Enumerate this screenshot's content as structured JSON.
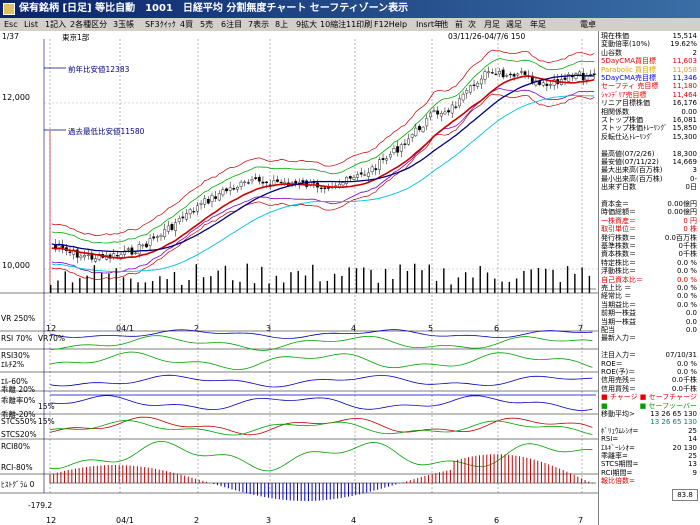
{
  "window": {
    "title": "保有銘柄 [日足] 等比自動　1001　日経平均 分割無度チャート セーフティゾーン表示"
  },
  "menu": [
    "Esc",
    "List",
    "1記入",
    "2各種区分",
    "3玉帳",
    "SF3ｸｲｯｸ",
    "4買",
    "5売",
    "6注目",
    "7表示",
    "8上",
    "9拡大",
    "10縮注",
    "11印刷",
    "F12Help",
    "Insrt年",
    "他",
    "前",
    "次",
    "月足",
    "週足",
    "年足",
    "電卓"
  ],
  "chart": {
    "page_indicator": "1/37",
    "code_label": "東京1部",
    "date_range": "03/11/26-04/7/6 150",
    "price_ticks": [
      "12,000",
      "10,000"
    ],
    "annotations": [
      {
        "text": "前年比安値12383"
      },
      {
        "text": "過去最低比安値11580"
      }
    ],
    "x_labels": [
      "12",
      "04/1",
      "2",
      "3",
      "4",
      "5",
      "6",
      "7"
    ],
    "indicator_labels": {
      "vr": "VR 250%",
      "rsi70": "RSI 70%",
      "vr70": "VR70%",
      "rsi30": "RSI30%",
      "eps": "ｴﾙﾁ2%",
      "era60": "ｴﾙ-60%",
      "ratio20": "乖離 20%",
      "kairi0": "乖離率0%",
      "m15a": "15%",
      "kairi20": "乖離-20%",
      "stcs50": "STCS50%",
      "m15b": "15%",
      "stcs20": "STCS20%",
      "rci80": "RCI80%",
      "rci80n": "RCI-80%",
      "hist": "ﾋｽﾄｸﾞﾗﾑ 0",
      "bottom": "-179.2"
    },
    "colors": {
      "candle_up": "#ffffff",
      "candle_down": "#000000",
      "ma_short": "#cc0000",
      "ma_mid": "#000080",
      "band_upper": "#00aa00",
      "band_lower": "#8000c0",
      "safety": "#00c0e0",
      "red_band": "#c00000"
    }
  },
  "panel": {
    "rows": [
      {
        "label": "現在株価",
        "value": "15,514",
        "color": "#000"
      },
      {
        "label": "変動倍率(10%)",
        "value": "19.62%",
        "color": "#000"
      },
      {
        "label": "山谷数",
        "value": "2",
        "color": "#000"
      },
      {
        "label": "5DayCMA買目標",
        "value": "11,603",
        "color": "#e00000"
      },
      {
        "label": "Parabolic 買目標",
        "value": "11,058",
        "color": "#e0a000"
      },
      {
        "label": "5DayCMA売目標",
        "value": "11,346",
        "color": "#0000e0"
      },
      {
        "label": "セーフティ 売目標",
        "value": "11,180",
        "color": "#e00000"
      },
      {
        "label": "ｼｬﾝﾃﾞﾘｱ売目標",
        "value": "11,464",
        "color": "#e00000"
      },
      {
        "label": "リニア目標株価",
        "value": "16,176",
        "color": "#000"
      },
      {
        "label": "相関係数",
        "value": "0.00",
        "color": "#000"
      },
      {
        "label": "ストップ株価",
        "value": "16,081",
        "color": "#000"
      },
      {
        "label": "ストップ株価ﾄﾚｰﾘﾝｸﾞ",
        "value": "15,850",
        "color": "#000"
      },
      {
        "label": "反転仕込ﾄﾚｰﾘﾝｸﾞ",
        "value": "15,300",
        "color": "#000"
      },
      {
        "label": "",
        "value": "",
        "color": "#000"
      },
      {
        "label": "最高値(07/2/26)",
        "value": "18,300",
        "color": "#000"
      },
      {
        "label": "最安値(07/11/22)",
        "value": "14,669",
        "color": "#000"
      },
      {
        "label": "最大出来高(百万株)",
        "value": "3",
        "color": "#000"
      },
      {
        "label": "最小出来高(百万株)",
        "value": "0-",
        "color": "#000"
      },
      {
        "label": "出来ず日数",
        "value": "0日",
        "color": "#000"
      },
      {
        "label": "",
        "value": "",
        "color": "#000"
      },
      {
        "label": "資本金＝",
        "value": "0.00億円",
        "color": "#000"
      },
      {
        "label": "時価総額＝",
        "value": "0.00億円",
        "color": "#000"
      },
      {
        "label": "一株資産＝",
        "value": "0 円",
        "color": "#e00000"
      },
      {
        "label": "取引単位＝",
        "value": "0 株",
        "color": "#e00000"
      },
      {
        "label": "発行株数＝",
        "value": "0.0百万株",
        "color": "#000"
      },
      {
        "label": "基準株数＝",
        "value": "0千株",
        "color": "#000"
      },
      {
        "label": "資本株数＝",
        "value": "0千株",
        "color": "#000"
      },
      {
        "label": "特定株比＝",
        "value": "0.0 %",
        "color": "#000"
      },
      {
        "label": "浮動株比＝",
        "value": "0.0 %",
        "color": "#000"
      },
      {
        "label": "自己資本比＝",
        "value": "0.0 %",
        "color": "#e00000"
      },
      {
        "label": "売上比 ＝",
        "value": "0.0 %",
        "color": "#000"
      },
      {
        "label": "経常比 ＝",
        "value": "0.0 %",
        "color": "#000"
      },
      {
        "label": "当期益比＝",
        "value": "0.0 %",
        "color": "#000"
      },
      {
        "label": "前期一株益",
        "value": "0.0",
        "color": "#000"
      },
      {
        "label": "当期一株益",
        "value": "0.0",
        "color": "#000"
      },
      {
        "label": "配当",
        "value": "0.0",
        "color": "#000"
      },
      {
        "label": "最新入力＝",
        "value": "",
        "color": "#000"
      },
      {
        "label": "",
        "value": "",
        "color": "#000"
      },
      {
        "label": "注目入力＝",
        "value": "07/10/31",
        "color": "#000"
      },
      {
        "label": "ROE＝",
        "value": "0.0 %",
        "color": "#000"
      },
      {
        "label": "ROE(予)＝",
        "value": "0.0 %",
        "color": "#000"
      },
      {
        "label": "信用売残＝",
        "value": "0.0千株",
        "color": "#000"
      },
      {
        "label": "信用買残＝",
        "value": "0.0千株",
        "color": "#000"
      },
      {
        "label": "■ チャージ",
        "value": "■ セーフチャージ",
        "color": "#e00000"
      },
      {
        "label": "■",
        "value": "■ セーフッーバー",
        "color": "#00a000"
      },
      {
        "label": "移動平均>",
        "value": "13 26 65 130",
        "color": "#000"
      },
      {
        "label": "",
        "value": "13 26 65 130",
        "color": "#008080"
      },
      {
        "label": "ﾎﾞﾘｭｳﾑﾚｼｵ=",
        "value": "25",
        "color": "#000"
      },
      {
        "label": "RSI=",
        "value": "14",
        "color": "#000"
      },
      {
        "label": "ｴﾙｷﾞｰﾚｼｵ=",
        "value": "20 130",
        "color": "#000"
      },
      {
        "label": "乖離率=",
        "value": "25",
        "color": "#000"
      },
      {
        "label": "STCS期間=",
        "value": "13",
        "color": "#000"
      },
      {
        "label": "RCI期間=",
        "value": "9",
        "color": "#000"
      },
      {
        "label": "報比倍数=",
        "value": "",
        "color": "#e00000"
      }
    ],
    "bottom_value": "83.8"
  }
}
